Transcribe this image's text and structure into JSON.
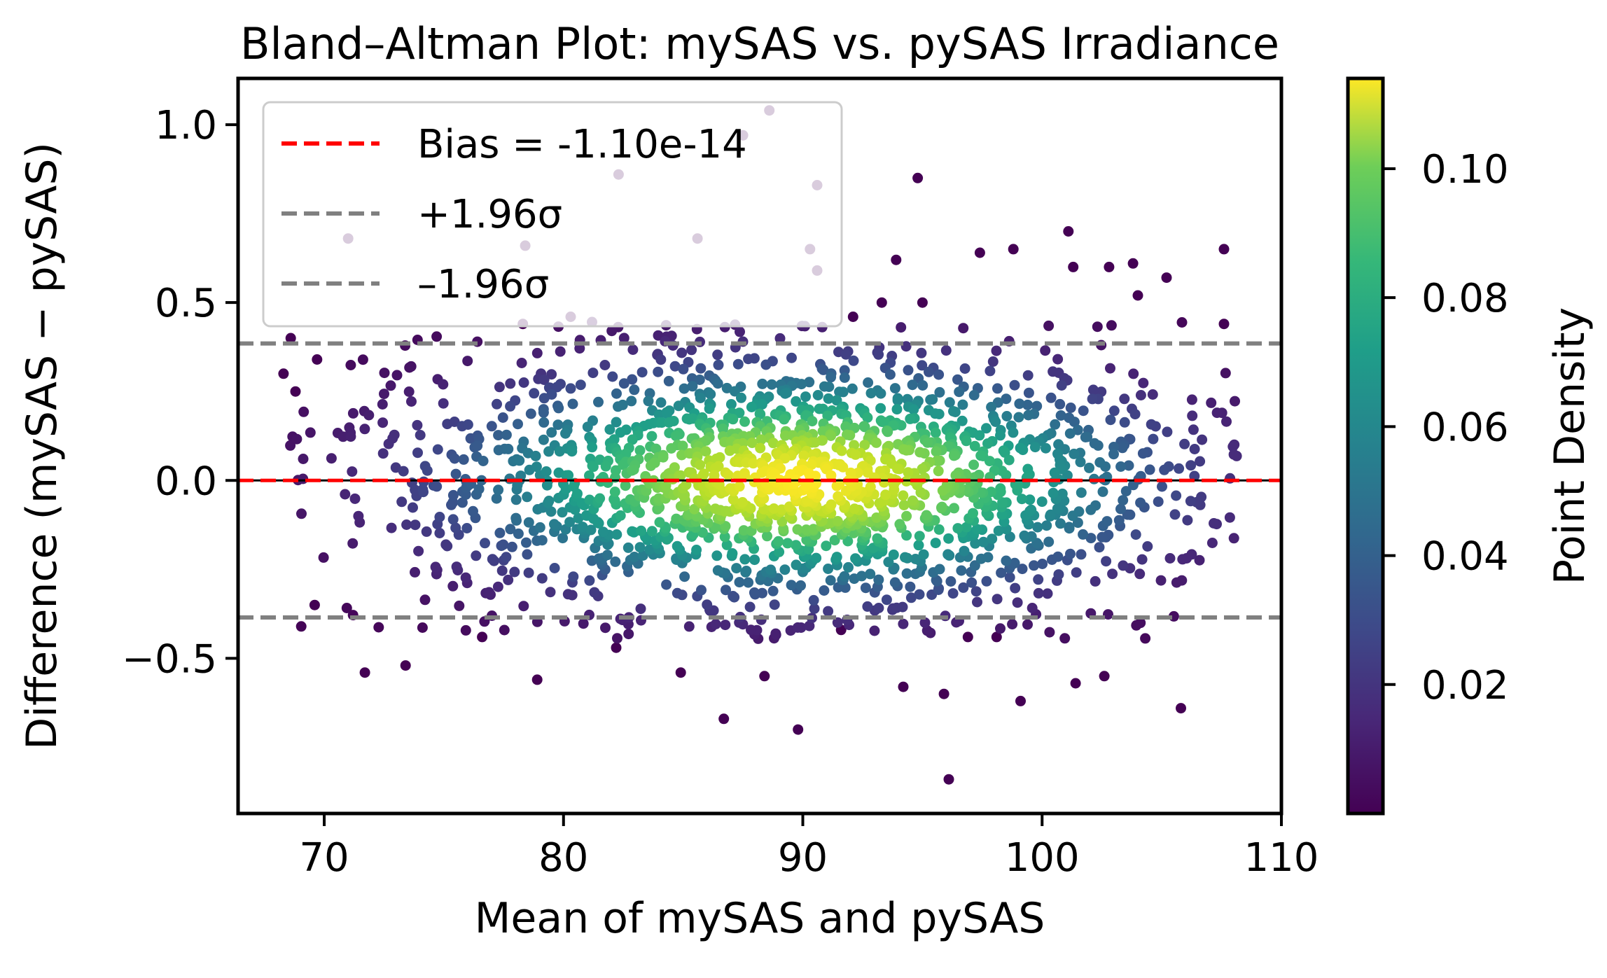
{
  "chart_data": {
    "type": "scatter",
    "title": "Bland–Altman Plot: mySAS vs. pySAS Irradiance",
    "xlabel": "Mean of mySAS and pySAS",
    "ylabel": "Difference (mySAS − pySAS)",
    "xlim": [
      66.4,
      110
    ],
    "ylim": [
      -0.936,
      1.13
    ],
    "xticks": [
      70,
      80,
      90,
      100,
      110
    ],
    "xtick_labels": [
      "70",
      "80",
      "90",
      "100",
      "110"
    ],
    "yticks": [
      -0.5,
      0.0,
      0.5,
      1.0
    ],
    "ytick_labels": [
      "−0.5",
      "0.0",
      "0.5",
      "1.0"
    ],
    "grid": false,
    "legend_position": "top-left",
    "legend": [
      {
        "label": "Bias = -1.10e-14",
        "color": "#ff0000",
        "style": "dashed"
      },
      {
        "label": "+1.96σ",
        "color": "#808080",
        "style": "dashed"
      },
      {
        "label": "–1.96σ",
        "color": "#808080",
        "style": "dashed"
      }
    ],
    "lines": {
      "bias": -1.1e-14,
      "upper_loa": 0.385,
      "lower_loa": -0.385,
      "zero": 0.0
    },
    "point_count": 1800,
    "x_center": 90,
    "x_spread": 9,
    "y_spread": 0.196,
    "colorbar": {
      "label": "Point Density",
      "colormap": "viridis",
      "range": [
        0.0,
        0.114
      ],
      "ticks": [
        0.02,
        0.04,
        0.06,
        0.08,
        0.1
      ],
      "tick_labels": [
        "0.02",
        "0.04",
        "0.06",
        "0.08",
        "0.10"
      ]
    },
    "outliers": [
      {
        "x": 68.6,
        "y": 0.4
      },
      {
        "x": 68.3,
        "y": 0.3
      },
      {
        "x": 68.8,
        "y": 0.25
      },
      {
        "x": 69.7,
        "y": 0.34
      },
      {
        "x": 71.0,
        "y": 0.68
      },
      {
        "x": 69.6,
        "y": -0.35
      },
      {
        "x": 71.7,
        "y": -0.54
      },
      {
        "x": 73.4,
        "y": -0.52
      },
      {
        "x": 76.6,
        "y": -0.44
      },
      {
        "x": 78.4,
        "y": 0.66
      },
      {
        "x": 78.3,
        "y": 0.44
      },
      {
        "x": 78.9,
        "y": -0.56
      },
      {
        "x": 80.3,
        "y": 0.46
      },
      {
        "x": 82.2,
        "y": -0.47
      },
      {
        "x": 84.9,
        "y": -0.54
      },
      {
        "x": 86.7,
        "y": -0.67
      },
      {
        "x": 88.4,
        "y": -0.55
      },
      {
        "x": 89.8,
        "y": -0.7
      },
      {
        "x": 94.8,
        "y": 0.85
      },
      {
        "x": 95.9,
        "y": -0.6
      },
      {
        "x": 96.1,
        "y": -0.84
      },
      {
        "x": 99.1,
        "y": -0.62
      },
      {
        "x": 101.4,
        "y": -0.57
      },
      {
        "x": 102.6,
        "y": -0.55
      },
      {
        "x": 105.8,
        "y": -0.64
      },
      {
        "x": 101.1,
        "y": 0.7
      },
      {
        "x": 98.8,
        "y": 0.65
      },
      {
        "x": 102.8,
        "y": 0.6
      },
      {
        "x": 103.8,
        "y": 0.61
      },
      {
        "x": 105.2,
        "y": 0.57
      },
      {
        "x": 107.6,
        "y": 0.65
      },
      {
        "x": 107.6,
        "y": 0.44
      },
      {
        "x": 93.9,
        "y": 0.62
      },
      {
        "x": 97.4,
        "y": 0.64
      },
      {
        "x": 101.3,
        "y": 0.6
      },
      {
        "x": 104.0,
        "y": 0.52
      },
      {
        "x": 95.0,
        "y": 0.5
      },
      {
        "x": 88.6,
        "y": 1.04
      },
      {
        "x": 90.6,
        "y": 0.83
      },
      {
        "x": 87.5,
        "y": 0.97
      },
      {
        "x": 82.3,
        "y": 0.86
      },
      {
        "x": 85.6,
        "y": 0.68
      },
      {
        "x": 90.6,
        "y": 0.59
      },
      {
        "x": 90.3,
        "y": 0.65
      },
      {
        "x": 93.3,
        "y": 0.5
      },
      {
        "x": 92.1,
        "y": 0.46
      },
      {
        "x": 96.9,
        "y": -0.44
      },
      {
        "x": 98.1,
        "y": -0.44
      },
      {
        "x": 94.2,
        "y": -0.58
      },
      {
        "x": 91.6,
        "y": -0.42
      }
    ]
  }
}
